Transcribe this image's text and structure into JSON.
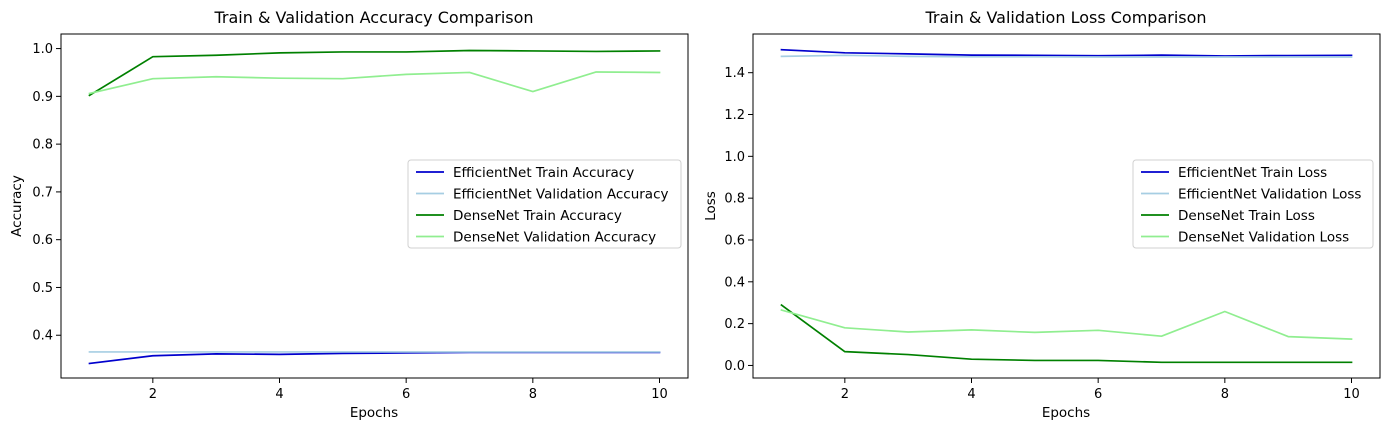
{
  "chart_data": [
    {
      "type": "line",
      "title": "Train & Validation Accuracy Comparison",
      "xlabel": "Epochs",
      "ylabel": "Accuracy",
      "xlim": [
        0.55,
        10.45
      ],
      "ylim": [
        0.3105,
        1.0305
      ],
      "xticks": [
        2,
        4,
        6,
        8,
        10
      ],
      "yticks": [
        0.4,
        0.5,
        0.6,
        0.7,
        0.8,
        0.9,
        1.0
      ],
      "ytick_labels": [
        "0.4",
        "0.5",
        "0.6",
        "0.7",
        "0.8",
        "0.9",
        "1.0"
      ],
      "legend_position": "center-right",
      "x": [
        1,
        2,
        3,
        4,
        5,
        6,
        7,
        8,
        9,
        10
      ],
      "series": [
        {
          "name": "EfficientNet Train Accuracy",
          "color": "#0000cd",
          "values": [
            0.341,
            0.357,
            0.361,
            0.36,
            0.362,
            0.363,
            0.364,
            0.364,
            0.364,
            0.364
          ]
        },
        {
          "name": "EfficientNet Validation Accuracy",
          "color": "#a6cee3",
          "values": [
            0.365,
            0.365,
            0.365,
            0.365,
            0.365,
            0.365,
            0.365,
            0.365,
            0.365,
            0.365
          ]
        },
        {
          "name": "DenseNet Train Accuracy",
          "color": "#008000",
          "values": [
            0.902,
            0.983,
            0.986,
            0.991,
            0.993,
            0.993,
            0.996,
            0.995,
            0.994,
            0.995
          ]
        },
        {
          "name": "DenseNet Validation Accuracy",
          "color": "#90ee90",
          "values": [
            0.906,
            0.937,
            0.941,
            0.938,
            0.937,
            0.946,
            0.95,
            0.91,
            0.951,
            0.95
          ]
        }
      ]
    },
    {
      "type": "line",
      "title": "Train & Validation Loss Comparison",
      "xlabel": "Epochs",
      "ylabel": "Loss",
      "xlim": [
        0.55,
        10.45
      ],
      "ylim": [
        -0.06,
        1.585
      ],
      "xticks": [
        2,
        4,
        6,
        8,
        10
      ],
      "yticks": [
        0.0,
        0.2,
        0.4,
        0.6,
        0.8,
        1.0,
        1.2,
        1.4
      ],
      "ytick_labels": [
        "0.0",
        "0.2",
        "0.4",
        "0.6",
        "0.8",
        "1.0",
        "1.2",
        "1.4"
      ],
      "legend_position": "center-right",
      "x": [
        1,
        2,
        3,
        4,
        5,
        6,
        7,
        8,
        9,
        10
      ],
      "series": [
        {
          "name": "EfficientNet Train Loss",
          "color": "#0000cd",
          "values": [
            1.51,
            1.495,
            1.49,
            1.484,
            1.483,
            1.481,
            1.484,
            1.48,
            1.482,
            1.483
          ]
        },
        {
          "name": "EfficientNet Validation Loss",
          "color": "#a6cee3",
          "values": [
            1.478,
            1.483,
            1.478,
            1.476,
            1.476,
            1.475,
            1.475,
            1.475,
            1.475,
            1.475
          ]
        },
        {
          "name": "DenseNet Train Loss",
          "color": "#008000",
          "values": [
            0.289,
            0.066,
            0.052,
            0.03,
            0.024,
            0.024,
            0.015,
            0.015,
            0.015,
            0.015
          ]
        },
        {
          "name": "DenseNet Validation Loss",
          "color": "#90ee90",
          "values": [
            0.265,
            0.18,
            0.16,
            0.17,
            0.158,
            0.168,
            0.14,
            0.258,
            0.138,
            0.126
          ]
        }
      ]
    }
  ]
}
